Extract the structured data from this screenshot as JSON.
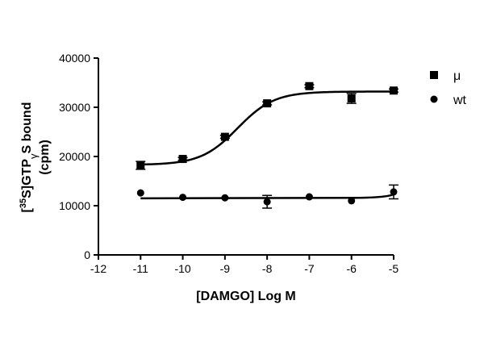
{
  "chart_data": {
    "type": "scatter",
    "xlabel": "[DAMGO] Log M",
    "ylabel": {
      "prefix": "[",
      "sup": "35",
      "main": "S]GTP",
      "greek": "γ",
      "suffix": "S bound",
      "line2": "(cpm)"
    },
    "xlim": [
      -12,
      -5
    ],
    "ylim": [
      0,
      40000
    ],
    "xticks": [
      -12,
      -11,
      -10,
      -9,
      -8,
      -7,
      -6,
      -5
    ],
    "yticks": [
      0,
      10000,
      20000,
      30000,
      40000
    ],
    "legend_position": "top-right",
    "series": [
      {
        "name": "μ",
        "marker": "square",
        "x": [
          -11,
          -10,
          -9,
          -8,
          -7,
          -6,
          -5
        ],
        "y": [
          18200,
          19500,
          24000,
          30800,
          34300,
          31800,
          33400
        ],
        "err": [
          800,
          300,
          300,
          300,
          300,
          1000,
          300
        ],
        "fit": {
          "model": "sigmoid",
          "bottom": 18300,
          "top": 33200,
          "logEC50": -8.7,
          "hill": 1.0
        }
      },
      {
        "name": "wt",
        "marker": "circle",
        "x": [
          -11,
          -10,
          -9,
          -8,
          -7,
          -6,
          -5
        ],
        "y": [
          12600,
          11700,
          11600,
          10800,
          11800,
          11000,
          12800
        ],
        "err": [
          0,
          0,
          0,
          1300,
          0,
          0,
          1400
        ],
        "fit": {
          "model": "line",
          "points": [
            [
              -11,
              11500
            ],
            [
              -6,
              11600
            ],
            [
              -5,
              12300
            ]
          ]
        }
      }
    ]
  }
}
